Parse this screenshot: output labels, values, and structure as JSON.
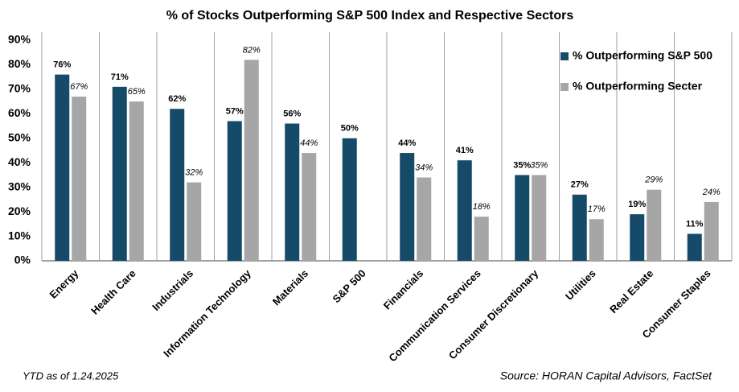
{
  "chart_data": {
    "type": "bar",
    "title": "% of Stocks Outperforming S&P 500 Index and Respective Sectors",
    "categories": [
      "Energy",
      "Health Care",
      "Industrials",
      "Information Technology",
      "Materials",
      "S&P 500",
      "Financials",
      "Communication Services",
      "Consumer Discretionary",
      "Utilities",
      "Real Estate",
      "Consumer Staples"
    ],
    "series": [
      {
        "name": "% Outperforming S&P 500",
        "color": "#154a69",
        "values": [
          76,
          71,
          62,
          57,
          56,
          50,
          44,
          41,
          35,
          27,
          19,
          11
        ],
        "value_labels": [
          "76%",
          "71%",
          "62%",
          "57%",
          "56%",
          "50%",
          "44%",
          "41%",
          "35%",
          "27%",
          "19%",
          "11%"
        ]
      },
      {
        "name": "% Outperforming Secter",
        "color": "#a6a6a6",
        "values": [
          67,
          65,
          32,
          82,
          44,
          null,
          34,
          18,
          35,
          17,
          29,
          24
        ],
        "value_labels": [
          "67%",
          "65%",
          "32%",
          "82%",
          "44%",
          null,
          "34%",
          "18%",
          "35%",
          "17%",
          "29%",
          "24%"
        ]
      }
    ],
    "ylim": [
      0,
      90
    ],
    "yticks": [
      {
        "value": 0,
        "label": "0%"
      },
      {
        "value": 10,
        "label": "10%"
      },
      {
        "value": 20,
        "label": "20%"
      },
      {
        "value": 30,
        "label": "30%"
      },
      {
        "value": 40,
        "label": "40%"
      },
      {
        "value": 50,
        "label": "50%"
      },
      {
        "value": 60,
        "label": "60%"
      },
      {
        "value": 70,
        "label": "70%"
      },
      {
        "value": 80,
        "label": "80%"
      },
      {
        "value": 90,
        "label": "90%"
      }
    ],
    "grid": false,
    "legend": "top-right",
    "footnote": "YTD as of 1.24.2025",
    "source": "Source: HORAN Capital Advisors, FactSet"
  }
}
